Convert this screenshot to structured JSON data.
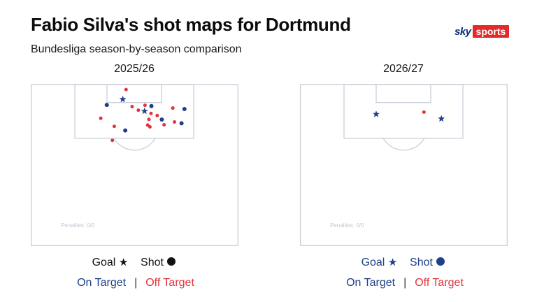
{
  "header": {
    "title": "Fabio Silva's shot maps for Dortmund",
    "subtitle": "Bundesliga season-by-season comparison"
  },
  "logo": {
    "sky": "sky",
    "sports": "sports"
  },
  "colors": {
    "on_target": "#1e3f8a",
    "off_target": "#e0343c",
    "pitch_line": "#c9cfd8"
  },
  "legend": {
    "goal_label": "Goal",
    "goal_symbol": "★",
    "shot_label": "Shot",
    "on_target_label": "On Target",
    "separator": "|",
    "off_target_label": "Off Target"
  },
  "chart_data": [
    {
      "type": "scatter",
      "title": "2025/26",
      "penalties_label": "Penalties: 0/0",
      "points": [
        {
          "x": 45.9,
          "y": 3.5,
          "kind": "shot",
          "target": "off"
        },
        {
          "x": 44.3,
          "y": 9.5,
          "kind": "goal",
          "target": "on"
        },
        {
          "x": 36.6,
          "y": 13.0,
          "kind": "shot",
          "target": "on"
        },
        {
          "x": 48.8,
          "y": 14.0,
          "kind": "shot",
          "target": "off"
        },
        {
          "x": 55.0,
          "y": 13.2,
          "kind": "shot",
          "target": "off"
        },
        {
          "x": 58.1,
          "y": 13.7,
          "kind": "shot",
          "target": "on"
        },
        {
          "x": 51.8,
          "y": 16.2,
          "kind": "shot",
          "target": "off"
        },
        {
          "x": 54.8,
          "y": 16.8,
          "kind": "goal",
          "target": "on"
        },
        {
          "x": 68.4,
          "y": 14.9,
          "kind": "shot",
          "target": "off"
        },
        {
          "x": 74.0,
          "y": 15.5,
          "kind": "shot",
          "target": "on"
        },
        {
          "x": 57.9,
          "y": 18.2,
          "kind": "shot",
          "target": "off"
        },
        {
          "x": 60.9,
          "y": 19.5,
          "kind": "shot",
          "target": "off"
        },
        {
          "x": 33.7,
          "y": 21.2,
          "kind": "shot",
          "target": "off"
        },
        {
          "x": 56.9,
          "y": 21.9,
          "kind": "shot",
          "target": "off"
        },
        {
          "x": 63.1,
          "y": 22.0,
          "kind": "shot",
          "target": "on"
        },
        {
          "x": 69.2,
          "y": 23.5,
          "kind": "shot",
          "target": "off"
        },
        {
          "x": 72.6,
          "y": 24.3,
          "kind": "shot",
          "target": "on"
        },
        {
          "x": 64.2,
          "y": 25.2,
          "kind": "shot",
          "target": "off"
        },
        {
          "x": 56.3,
          "y": 25.4,
          "kind": "shot",
          "target": "off"
        },
        {
          "x": 57.4,
          "y": 26.5,
          "kind": "shot",
          "target": "off"
        },
        {
          "x": 40.2,
          "y": 26.2,
          "kind": "shot",
          "target": "off"
        },
        {
          "x": 45.5,
          "y": 28.7,
          "kind": "shot",
          "target": "on"
        },
        {
          "x": 39.3,
          "y": 34.8,
          "kind": "shot",
          "target": "off"
        }
      ]
    },
    {
      "type": "scatter",
      "title": "2026/27",
      "penalties_label": "Penalties: 0/0",
      "points": [
        {
          "x": 36.7,
          "y": 18.7,
          "kind": "goal",
          "target": "on"
        },
        {
          "x": 59.7,
          "y": 17.4,
          "kind": "shot",
          "target": "off"
        },
        {
          "x": 68.1,
          "y": 21.5,
          "kind": "goal",
          "target": "on"
        }
      ]
    }
  ]
}
